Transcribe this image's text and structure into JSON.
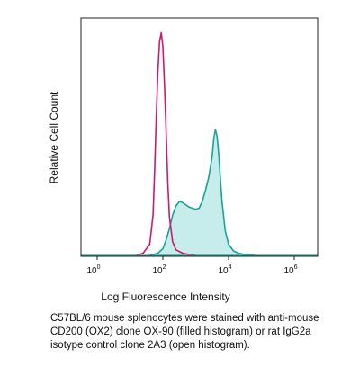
{
  "chart_data": {
    "type": "area",
    "title": "",
    "xlabel": "Log Fluorescence Intensity",
    "ylabel": "Relative Cell Count",
    "x_scale": "log10",
    "xlim": [
      1,
      100000000
    ],
    "ylim": [
      0,
      1
    ],
    "grid": false,
    "legend": "none",
    "tick_labels": [
      {
        "base": "10",
        "exp": "0",
        "x": 1
      },
      {
        "base": "10",
        "exp": "2",
        "x": 100
      },
      {
        "base": "10",
        "exp": "4",
        "x": 10000
      },
      {
        "base": "10",
        "exp": "6",
        "x": 1000000
      }
    ],
    "series": [
      {
        "style": "filled",
        "color": "#1aa39a",
        "fill": "#c6ecec",
        "log_x": [
          1.6,
          1.85,
          2.0,
          2.1,
          2.2,
          2.3,
          2.4,
          2.5,
          2.6,
          2.7,
          2.8,
          2.9,
          3.0,
          3.1,
          3.2,
          3.3,
          3.4,
          3.5,
          3.55,
          3.6,
          3.65,
          3.7,
          3.75,
          3.8,
          3.9,
          4.0,
          4.15,
          4.3,
          4.5,
          4.8
        ],
        "values": [
          0.0,
          0.01,
          0.03,
          0.07,
          0.12,
          0.18,
          0.22,
          0.24,
          0.235,
          0.225,
          0.215,
          0.21,
          0.205,
          0.21,
          0.24,
          0.29,
          0.35,
          0.44,
          0.52,
          0.56,
          0.53,
          0.45,
          0.34,
          0.24,
          0.11,
          0.05,
          0.02,
          0.01,
          0.004,
          0.0
        ]
      },
      {
        "style": "open",
        "color": "#cc1a6e",
        "fill": "none",
        "log_x": [
          1.2,
          1.4,
          1.6,
          1.7,
          1.75,
          1.8,
          1.85,
          1.9,
          1.95,
          2.0,
          2.05,
          2.1,
          2.15,
          2.2,
          2.3,
          2.4,
          2.6,
          2.8,
          3.0
        ],
        "values": [
          0.0,
          0.01,
          0.05,
          0.18,
          0.38,
          0.62,
          0.82,
          0.95,
          0.99,
          0.93,
          0.76,
          0.54,
          0.32,
          0.17,
          0.06,
          0.025,
          0.01,
          0.004,
          0.0
        ]
      }
    ],
    "caption": "C57BL/6 mouse splenocytes were stained with anti-mouse CD200 (OX2) clone OX-90 (filled histogram) or rat IgG2a isotype control clone 2A3 (open histogram)."
  }
}
